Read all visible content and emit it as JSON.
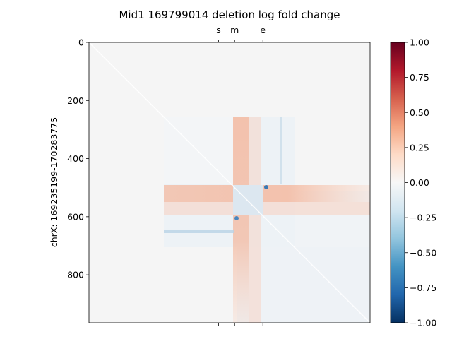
{
  "chart_data": {
    "type": "heatmap",
    "title": "Mid1 169799014 deletion log fold change",
    "ylabel": "chrX: 169235199-170283775",
    "xlabel": "",
    "yticks": [
      0,
      200,
      400,
      600,
      800
    ],
    "ylim": [
      965,
      0
    ],
    "top_markers": [
      {
        "label": "s",
        "pos": 445
      },
      {
        "label": "m",
        "pos": 500
      },
      {
        "label": "e",
        "pos": 597
      }
    ],
    "colorbar": {
      "cmap": "RdBu_r",
      "vmin": -1.0,
      "vmax": 1.0,
      "ticks": [
        "1.00",
        "0.75",
        "0.50",
        "0.25",
        "0.00",
        "−0.25",
        "−0.50",
        "−0.75",
        "−1.00"
      ],
      "tick_values": [
        1.0,
        0.75,
        0.5,
        0.25,
        0.0,
        -0.25,
        -0.5,
        -0.75,
        -1.0
      ]
    },
    "grid": false,
    "features": {
      "deletion_window": [
        255,
        700
      ],
      "horizontal_stripe_rows": [
        520,
        600
      ],
      "vertical_stripe_cols": [
        500,
        600
      ],
      "stripe_value": 0.25,
      "minimum_value": -0.9
    }
  }
}
